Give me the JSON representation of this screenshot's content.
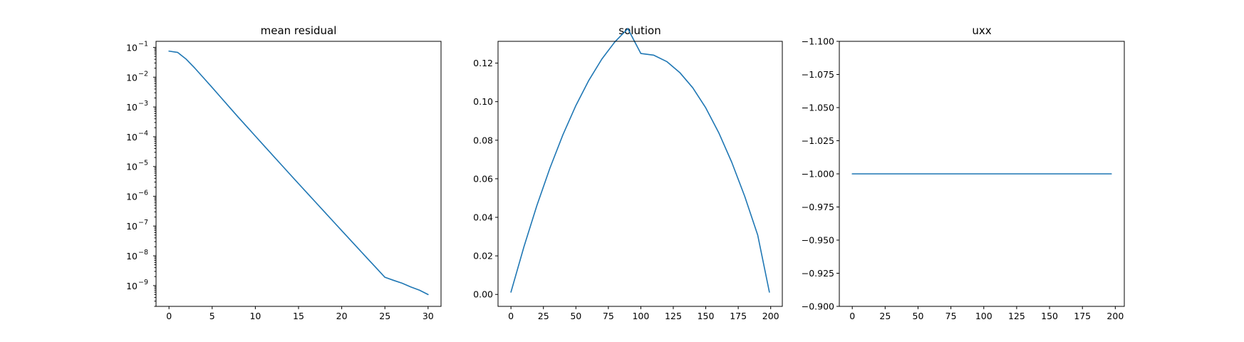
{
  "figure": {
    "background": "#ffffff",
    "line_color": "#1f77b4"
  },
  "chart_data": [
    {
      "type": "line",
      "title": "mean residual",
      "xlabel": "",
      "ylabel": "",
      "yscale": "log",
      "xlim": [
        -1.5,
        31.5
      ],
      "ylim": [
        2e-10,
        0.16
      ],
      "xticks": [
        0,
        5,
        10,
        15,
        20,
        25,
        30
      ],
      "xtick_labels": [
        "0",
        "5",
        "10",
        "15",
        "20",
        "25",
        "30"
      ],
      "yticks": [
        1e-09,
        1e-08,
        1e-07,
        1e-06,
        1e-05,
        0.0001,
        0.001,
        0.01,
        0.1
      ],
      "ytick_labels": [
        {
          "base": "10",
          "exp": "−9"
        },
        {
          "base": "10",
          "exp": "−8"
        },
        {
          "base": "10",
          "exp": "−7"
        },
        {
          "base": "10",
          "exp": "−6"
        },
        {
          "base": "10",
          "exp": "−5"
        },
        {
          "base": "10",
          "exp": "−4"
        },
        {
          "base": "10",
          "exp": "−3"
        },
        {
          "base": "10",
          "exp": "−2"
        },
        {
          "base": "10",
          "exp": "−1"
        }
      ],
      "grid": false,
      "series": [
        {
          "x": [
            0,
            1,
            2,
            3,
            4,
            5,
            6,
            7,
            8,
            9,
            10,
            11,
            12,
            13,
            14,
            15,
            16,
            17,
            18,
            19,
            20,
            21,
            22,
            23,
            24,
            25,
            26,
            27,
            28,
            29,
            30
          ],
          "y": [
            0.075,
            0.068,
            0.04,
            0.02,
            0.0095,
            0.0045,
            0.0021,
            0.00098,
            0.00046,
            0.00022,
            0.000105,
            5e-05,
            2.4e-05,
            1.15e-05,
            5.5e-06,
            2.65e-06,
            1.28e-06,
            6.2e-07,
            3e-07,
            1.45e-07,
            7e-08,
            3.4e-08,
            1.65e-08,
            8e-09,
            3.9e-09,
            1.9e-09,
            1.5e-09,
            1.2e-09,
            9e-10,
            7e-10,
            5e-10
          ]
        }
      ]
    },
    {
      "type": "line",
      "title": "solution",
      "xlabel": "",
      "ylabel": "",
      "yscale": "linear",
      "xlim": [
        -9.95,
        208.95
      ],
      "ylim": [
        -0.0062,
        0.1313
      ],
      "xticks": [
        0,
        25,
        50,
        75,
        100,
        125,
        150,
        175,
        200
      ],
      "xtick_labels": [
        "0",
        "25",
        "50",
        "75",
        "100",
        "125",
        "150",
        "175",
        "200"
      ],
      "yticks": [
        0.0,
        0.02,
        0.04,
        0.06,
        0.08,
        0.1,
        0.12
      ],
      "ytick_labels": [
        "0.00",
        "0.02",
        "0.04",
        "0.06",
        "0.08",
        "0.10",
        "0.12"
      ],
      "grid": false,
      "series": [
        {
          "x": [
            0,
            10,
            20,
            30,
            40,
            50,
            60,
            70,
            80,
            90,
            100,
            110,
            120,
            130,
            140,
            150,
            160,
            170,
            180,
            190,
            199
          ],
          "y": [
            0.0012,
            0.0247,
            0.0462,
            0.0655,
            0.0828,
            0.098,
            0.1111,
            0.1221,
            0.131,
            0.1379,
            0.125,
            0.1241,
            0.1208,
            0.1151,
            0.1072,
            0.0968,
            0.0839,
            0.0686,
            0.0509,
            0.0308,
            0.0012
          ]
        }
      ]
    },
    {
      "type": "line",
      "title": "uxx",
      "xlabel": "",
      "ylabel": "",
      "yscale": "linear",
      "xlim": [
        -9.85,
        206.85
      ],
      "ylim": [
        -1.1,
        -0.9
      ],
      "y_inverted": true,
      "xticks": [
        0,
        25,
        50,
        75,
        100,
        125,
        150,
        175,
        200
      ],
      "xtick_labels": [
        "0",
        "25",
        "50",
        "75",
        "100",
        "125",
        "150",
        "175",
        "200"
      ],
      "yticks": [
        -1.1,
        -1.075,
        -1.05,
        -1.025,
        -1.0,
        -0.975,
        -0.95,
        -0.925,
        -0.9
      ],
      "ytick_labels": [
        "−1.100",
        "−1.075",
        "−1.050",
        "−1.025",
        "−1.000",
        "−0.975",
        "−0.950",
        "−0.925",
        "−0.900"
      ],
      "grid": false,
      "series": [
        {
          "x": [
            0,
            197
          ],
          "y": [
            -1.0,
            -1.0
          ]
        }
      ]
    }
  ]
}
